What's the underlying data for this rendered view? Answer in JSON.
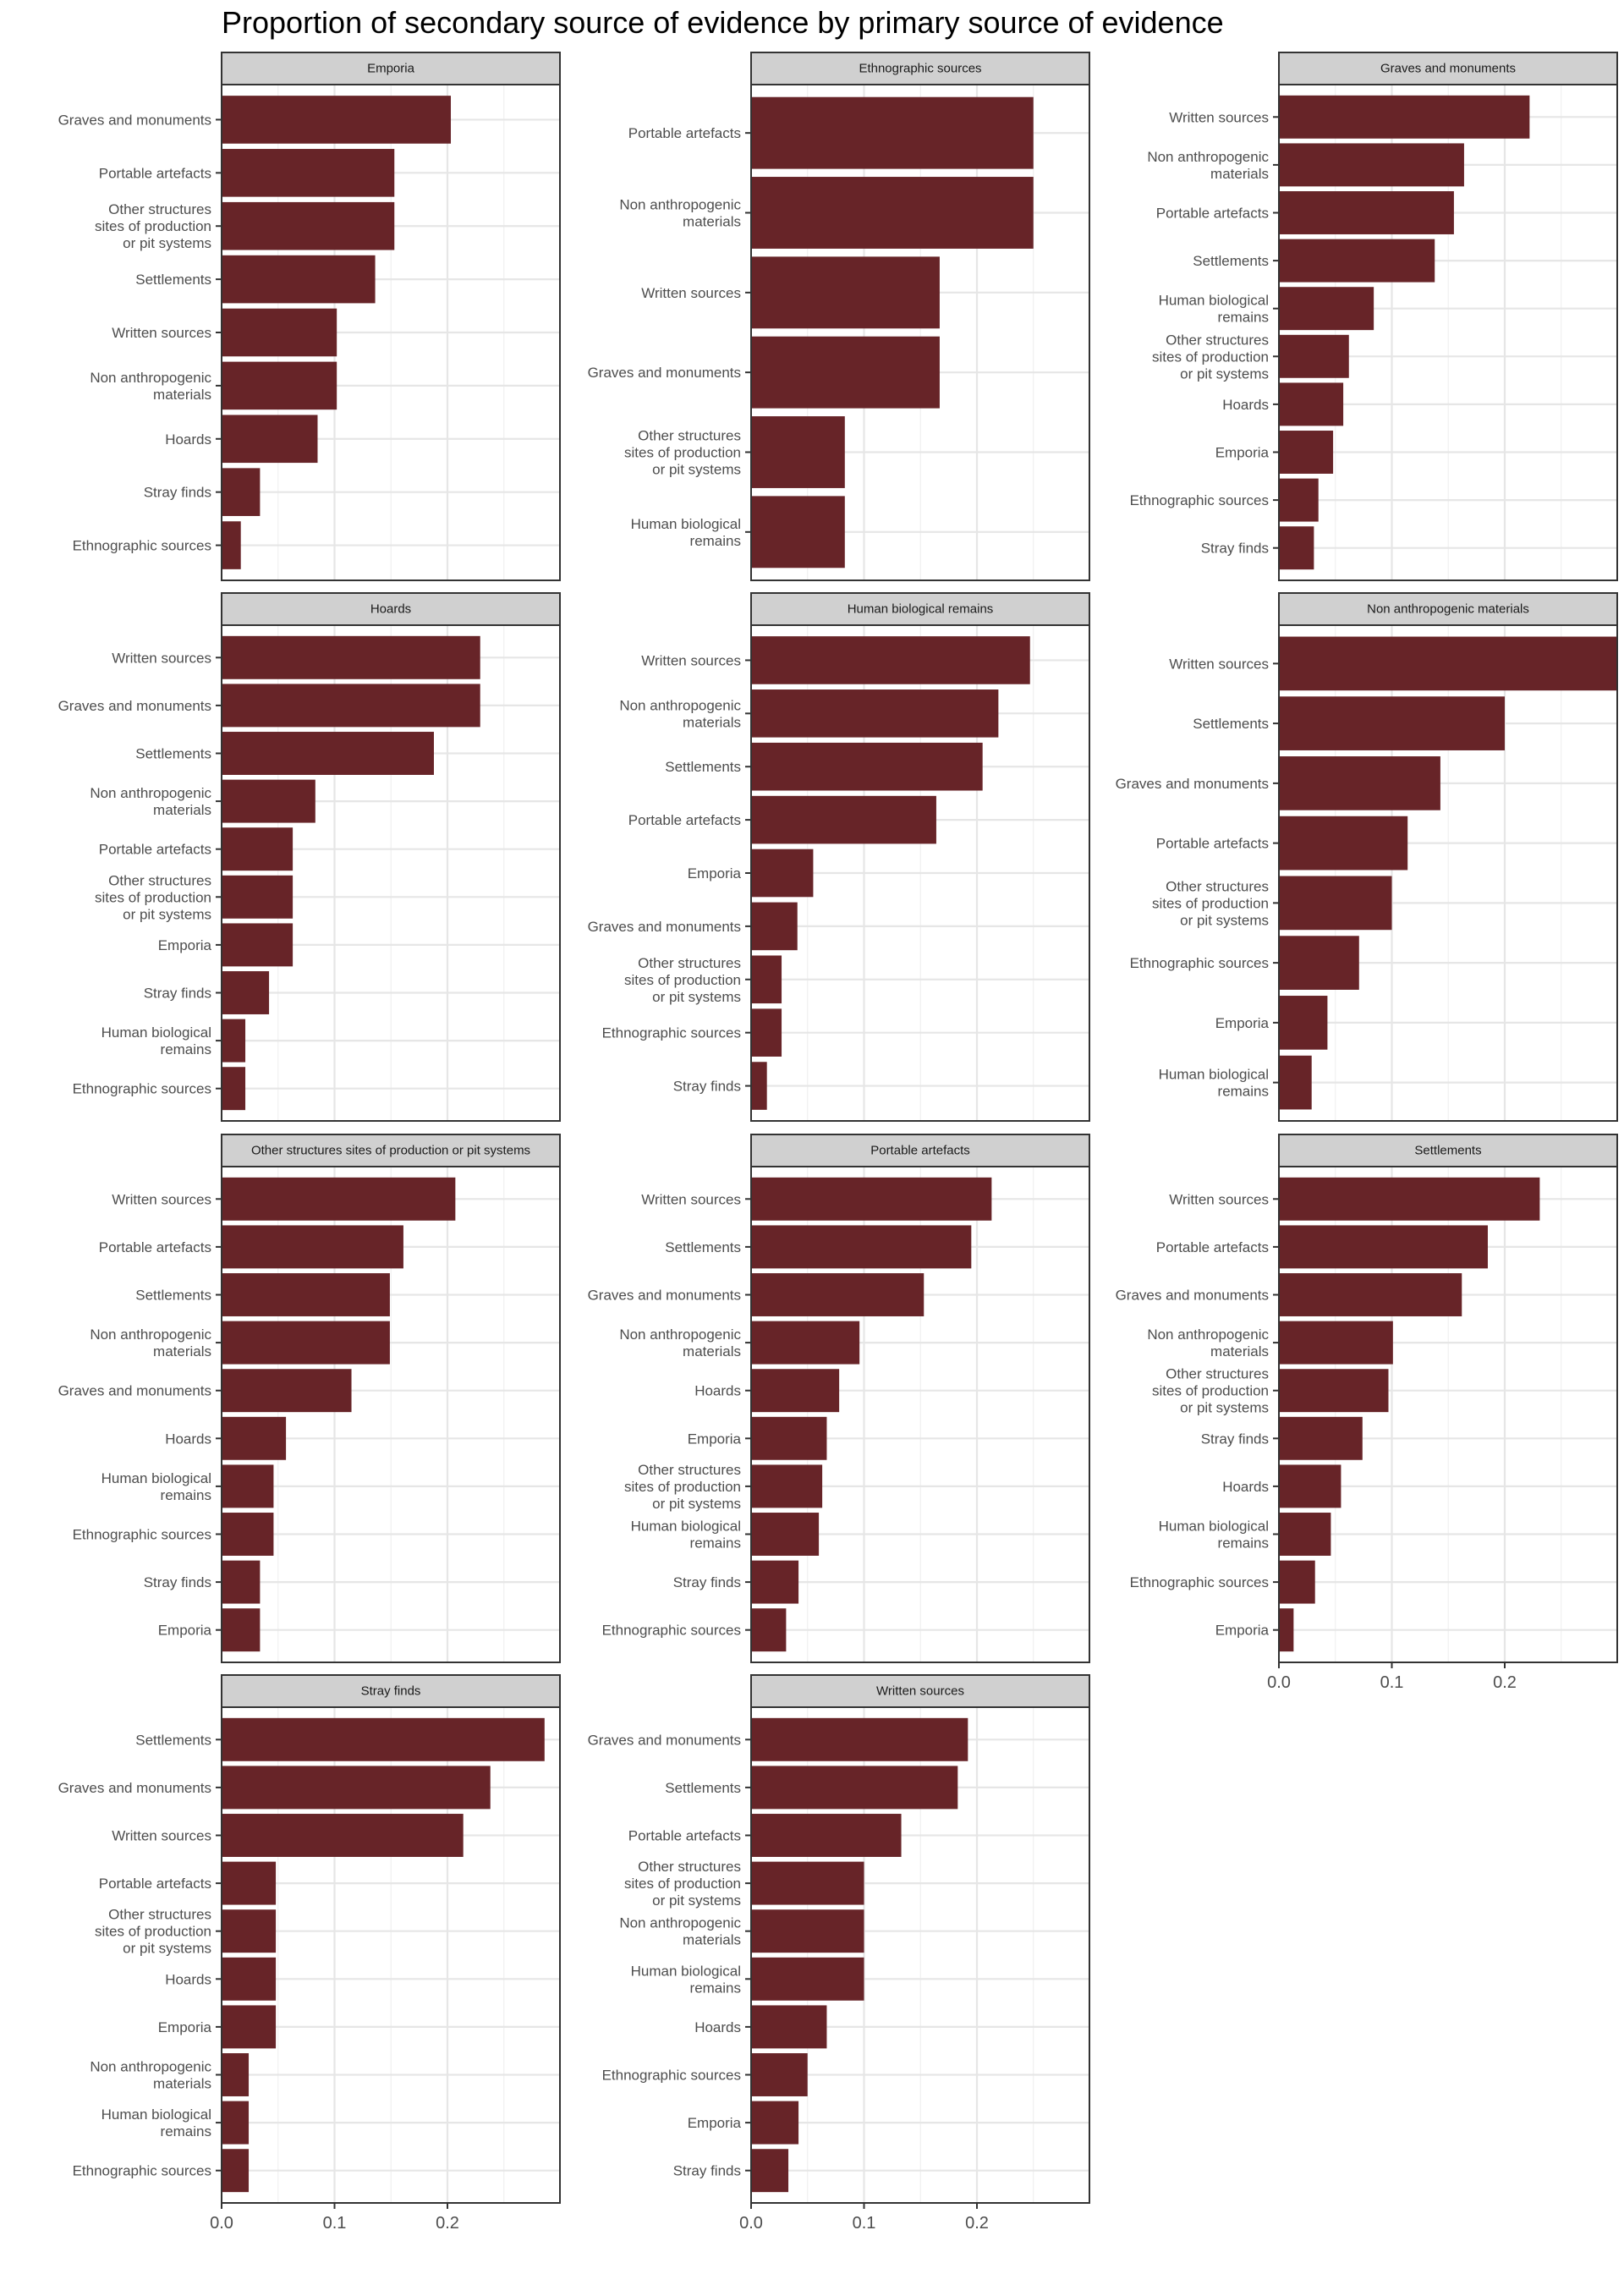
{
  "chart_data": {
    "type": "bar",
    "orientation": "horizontal",
    "title": "Proportion of secondary source of evidence by primary source of evidence",
    "xlabel": "",
    "ylabel": "",
    "xlim": [
      0,
      0.3
    ],
    "x_ticks": [
      "0.0",
      "0.1",
      "0.2"
    ],
    "x_tick_values": [
      0,
      0.1,
      0.2
    ],
    "grid": true,
    "bar_color": "#672428",
    "strip_color": "#d0d0d0",
    "facets": [
      {
        "name": "Emporia",
        "categories": [
          "Graves and monuments",
          "Portable artefacts",
          "Other structures\nsites of production\nor pit systems",
          "Settlements",
          "Written sources",
          "Non anthropogenic\nmaterials",
          "Hoards",
          "Stray finds",
          "Ethnographic sources"
        ],
        "values": [
          0.203,
          0.153,
          0.153,
          0.136,
          0.102,
          0.102,
          0.085,
          0.034,
          0.017
        ]
      },
      {
        "name": "Ethnographic sources",
        "categories": [
          "Portable artefacts",
          "Non anthropogenic\nmaterials",
          "Written sources",
          "Graves and monuments",
          "Other structures\nsites of production\nor pit systems",
          "Human biological\nremains"
        ],
        "values": [
          0.25,
          0.25,
          0.167,
          0.167,
          0.083,
          0.083
        ]
      },
      {
        "name": "Graves and monuments",
        "categories": [
          "Written sources",
          "Non anthropogenic\nmaterials",
          "Portable artefacts",
          "Settlements",
          "Human biological\nremains",
          "Other structures\nsites of production\nor pit systems",
          "Hoards",
          "Emporia",
          "Ethnographic sources",
          "Stray finds"
        ],
        "values": [
          0.222,
          0.164,
          0.155,
          0.138,
          0.084,
          0.062,
          0.057,
          0.048,
          0.035,
          0.031
        ]
      },
      {
        "name": "Hoards",
        "categories": [
          "Written sources",
          "Graves and monuments",
          "Settlements",
          "Non anthropogenic\nmaterials",
          "Portable artefacts",
          "Other structures\nsites of production\nor pit systems",
          "Emporia",
          "Stray finds",
          "Human biological\nremains",
          "Ethnographic sources"
        ],
        "values": [
          0.229,
          0.229,
          0.188,
          0.083,
          0.063,
          0.063,
          0.063,
          0.042,
          0.021,
          0.021
        ]
      },
      {
        "name": "Human biological remains",
        "categories": [
          "Written sources",
          "Non anthropogenic\nmaterials",
          "Settlements",
          "Portable artefacts",
          "Emporia",
          "Graves and monuments",
          "Other structures\nsites of production\nor pit systems",
          "Ethnographic sources",
          "Stray finds"
        ],
        "values": [
          0.247,
          0.219,
          0.205,
          0.164,
          0.055,
          0.041,
          0.027,
          0.027,
          0.014
        ]
      },
      {
        "name": "Non anthropogenic materials",
        "categories": [
          "Written sources",
          "Settlements",
          "Graves and monuments",
          "Portable artefacts",
          "Other structures\nsites of production\nor pit systems",
          "Ethnographic sources",
          "Emporia",
          "Human biological\nremains"
        ],
        "values": [
          0.3,
          0.2,
          0.143,
          0.114,
          0.1,
          0.071,
          0.043,
          0.029
        ]
      },
      {
        "name": "Other structures  sites of production or pit systems",
        "categories": [
          "Written sources",
          "Portable artefacts",
          "Settlements",
          "Non anthropogenic\nmaterials",
          "Graves and monuments",
          "Hoards",
          "Human biological\nremains",
          "Ethnographic sources",
          "Stray finds",
          "Emporia"
        ],
        "values": [
          0.207,
          0.161,
          0.149,
          0.149,
          0.115,
          0.057,
          0.046,
          0.046,
          0.034,
          0.034
        ]
      },
      {
        "name": "Portable artefacts",
        "categories": [
          "Written sources",
          "Settlements",
          "Graves and monuments",
          "Non anthropogenic\nmaterials",
          "Hoards",
          "Emporia",
          "Other structures\nsites of production\nor pit systems",
          "Human biological\nremains",
          "Stray finds",
          "Ethnographic sources"
        ],
        "values": [
          0.213,
          0.195,
          0.153,
          0.096,
          0.078,
          0.067,
          0.063,
          0.06,
          0.042,
          0.031
        ]
      },
      {
        "name": "Settlements",
        "categories": [
          "Written sources",
          "Portable artefacts",
          "Graves and monuments",
          "Non anthropogenic\nmaterials",
          "Other structures\nsites of production\nor pit systems",
          "Stray finds",
          "Hoards",
          "Human biological\nremains",
          "Ethnographic sources",
          "Emporia"
        ],
        "values": [
          0.231,
          0.185,
          0.162,
          0.101,
          0.097,
          0.074,
          0.055,
          0.046,
          0.032,
          0.013
        ]
      },
      {
        "name": "Stray finds",
        "categories": [
          "Settlements",
          "Graves and monuments",
          "Written sources",
          "Portable artefacts",
          "Other structures\nsites of production\nor pit systems",
          "Hoards",
          "Emporia",
          "Non anthropogenic\nmaterials",
          "Human biological\nremains",
          "Ethnographic sources"
        ],
        "values": [
          0.286,
          0.238,
          0.214,
          0.048,
          0.048,
          0.048,
          0.048,
          0.024,
          0.024,
          0.024
        ]
      },
      {
        "name": "Written sources",
        "categories": [
          "Graves and monuments",
          "Settlements",
          "Portable artefacts",
          "Other structures\nsites of production\nor pit systems",
          "Non anthropogenic\nmaterials",
          "Human biological\nremains",
          "Hoards",
          "Ethnographic sources",
          "Emporia",
          "Stray finds"
        ],
        "values": [
          0.192,
          0.183,
          0.133,
          0.1,
          0.1,
          0.1,
          0.067,
          0.05,
          0.042,
          0.033
        ]
      }
    ],
    "x_axis_shown_under": [
      "Settlements",
      "Stray finds",
      "Written sources"
    ]
  }
}
